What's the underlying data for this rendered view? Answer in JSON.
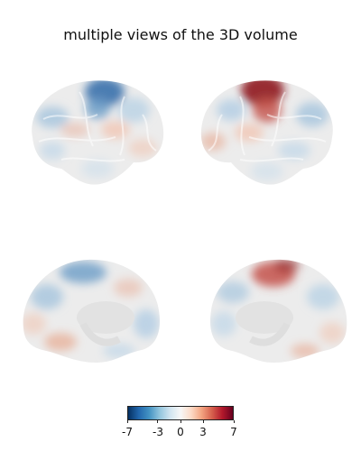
{
  "title": "multiple views of the 3D volume",
  "views": [
    {
      "view": "left-lateral",
      "hotspot_color": "#2d6aa8"
    },
    {
      "view": "right-lateral",
      "hotspot_color": "#8f1a1f"
    },
    {
      "view": "left-medial",
      "hotspot_color": "#6b9cc7"
    },
    {
      "view": "right-medial",
      "hotspot_color": "#c4524a"
    }
  ],
  "colorbar": {
    "ticks": [
      "-7",
      "-3",
      "0",
      "3",
      "7"
    ],
    "range": [
      -7,
      7
    ],
    "colors": [
      "#053061",
      "#2166ac",
      "#4393c3",
      "#92c5de",
      "#d1e5f0",
      "#f7f7f7",
      "#fddbc7",
      "#f4a582",
      "#d6604d",
      "#b2182b",
      "#67001f"
    ]
  },
  "surface_base_color": "#ececec"
}
